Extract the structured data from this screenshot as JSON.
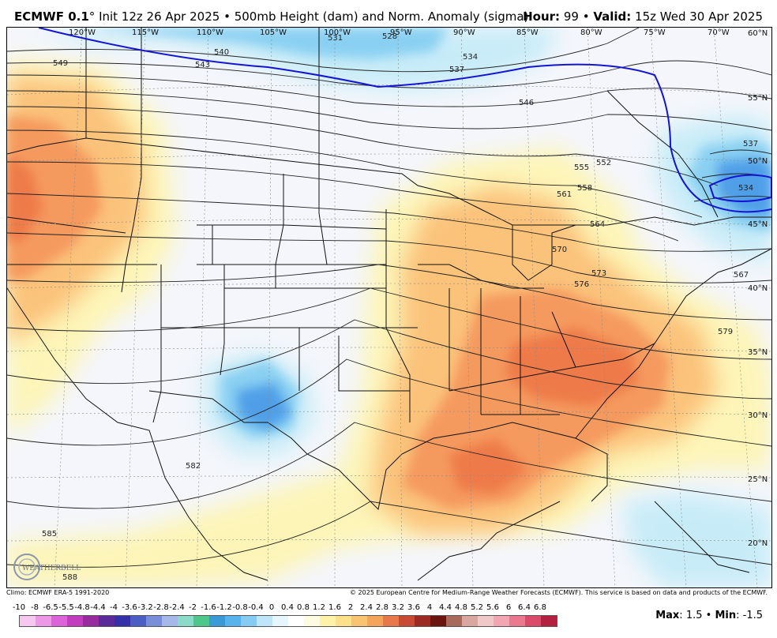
{
  "header": {
    "model": "ECMWF 0.1",
    "degree": "°",
    "init": "Init 12z 26 Apr 2025",
    "sep": "•",
    "product": "500mb Height (dam) and Norm. Anomaly (sigma)",
    "hour_label": "Hour:",
    "hour_value": "99",
    "valid_label": "Valid:",
    "valid_value": "15z Wed 30 Apr 2025"
  },
  "map": {
    "longitude_labels": [
      "120°W",
      "115°W",
      "110°W",
      "105°W",
      "100°W",
      "95°W",
      "90°W",
      "85°W",
      "80°W",
      "75°W",
      "70°W"
    ],
    "latitude_labels": [
      "60°N",
      "55°N",
      "50°N",
      "45°N",
      "40°N",
      "35°N",
      "30°N",
      "25°N",
      "20°N"
    ],
    "contour_labels": [
      "549",
      "543",
      "540",
      "531",
      "528",
      "534",
      "537",
      "546",
      "552",
      "555",
      "558",
      "561",
      "564",
      "570",
      "573",
      "576",
      "567",
      "579",
      "582",
      "585",
      "588",
      "537",
      "534"
    ],
    "anomaly_colors": {
      "warm_light": "#fdf5b8",
      "warm_mid": "#fbc27a",
      "warm_strong": "#f59a5e",
      "warm_peak": "#ee7a48",
      "cold_light": "#c7ecf8",
      "cold_mid": "#8ad0f2",
      "cold_strong": "#4f9fe8",
      "low_contour": "#1414d4"
    }
  },
  "footer": {
    "climo": "Climo: ECMWF ERA-5 1991-2020",
    "copyright": "© 2025 European Centre for Medium-Range Weather Forecasts (ECMWF). This service is based on data and products of the ECMWF."
  },
  "colorbar": {
    "ticks": [
      "-10",
      "-8",
      "-6.5",
      "-5.5",
      "-4.8",
      "-4.4",
      "-4",
      "-3.6",
      "-3.2",
      "-2.8",
      "-2.4",
      "-2",
      "-1.6",
      "-1.2",
      "-0.8",
      "-0.4",
      "0",
      "0.4",
      "0.8",
      "1.2",
      "1.6",
      "2",
      "2.4",
      "2.8",
      "3.2",
      "3.6",
      "4",
      "4.4",
      "4.8",
      "5.2",
      "5.6",
      "6",
      "6.4",
      "6.8"
    ],
    "colors": [
      "#f6c8f0",
      "#ec98e6",
      "#dc64d8",
      "#c23cc0",
      "#962a9e",
      "#5a2a9a",
      "#3430a8",
      "#4a5ec4",
      "#7a8ed8",
      "#a6b8e8",
      "#8adcc8",
      "#4ec88a",
      "#3a9ad8",
      "#58b2ec",
      "#86cbf2",
      "#bfe6f8",
      "#e6f6fc",
      "#ffffff",
      "#fefce0",
      "#fdf2a8",
      "#fce08a",
      "#f9c472",
      "#f5a45c",
      "#e8784a",
      "#c84a34",
      "#9a2a22",
      "#6a1410",
      "#a86a5a",
      "#d8a8a0",
      "#f0c8c8",
      "#f2a6b4",
      "#ec7890",
      "#dc4a6a",
      "#b42040"
    ]
  },
  "stats": {
    "max_label": "Max",
    "max_value": "1.5",
    "min_label": "Min",
    "min_value": "-1.5"
  },
  "logo": {
    "text": "WEATHERBELL"
  }
}
